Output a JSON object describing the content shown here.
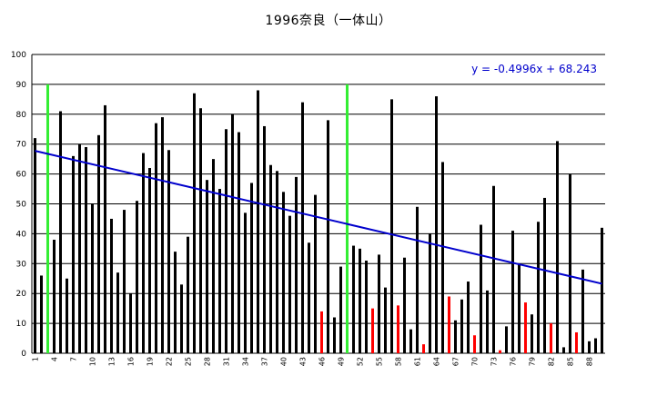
{
  "chart_data": {
    "type": "bar",
    "title": "1996奈良（一体山）",
    "xlabel": "",
    "ylabel": "",
    "ylim": [
      0,
      100
    ],
    "y_ticks": [
      0,
      10,
      20,
      30,
      40,
      50,
      60,
      70,
      80,
      90,
      100
    ],
    "x_ticks": [
      "1",
      "4",
      "7",
      "10",
      "13",
      "16",
      "19",
      "22",
      "25",
      "28",
      "31",
      "34",
      "37",
      "40",
      "43",
      "46",
      "49",
      "52",
      "55",
      "58",
      "61",
      "64",
      "67",
      "70",
      "73",
      "76",
      "79",
      "82",
      "85",
      "88"
    ],
    "grid": "horizontal",
    "legend": "none",
    "x": [
      1,
      2,
      3,
      4,
      5,
      6,
      7,
      8,
      9,
      10,
      11,
      12,
      13,
      14,
      15,
      16,
      17,
      18,
      19,
      20,
      21,
      22,
      23,
      24,
      25,
      26,
      27,
      28,
      29,
      30,
      31,
      32,
      33,
      34,
      35,
      36,
      37,
      38,
      39,
      40,
      41,
      42,
      43,
      44,
      45,
      46,
      47,
      48,
      49,
      50,
      51,
      52,
      53,
      54,
      55,
      56,
      57,
      58,
      59,
      60,
      61,
      62,
      63,
      64,
      65,
      66,
      67,
      68,
      69,
      70,
      71,
      72,
      73,
      74,
      75,
      76,
      77,
      78,
      79,
      80,
      81,
      82,
      83,
      84,
      85,
      86,
      87,
      88,
      89,
      90
    ],
    "values": [
      72,
      26,
      90,
      38,
      81,
      25,
      66,
      70,
      69,
      50,
      73,
      83,
      45,
      27,
      48,
      20,
      51,
      67,
      62,
      77,
      79,
      68,
      34,
      23,
      39,
      87,
      82,
      58,
      65,
      55,
      75,
      80,
      74,
      47,
      57,
      88,
      76,
      63,
      61,
      54,
      46,
      59,
      84,
      37,
      53,
      14,
      78,
      12,
      29,
      90,
      36,
      35,
      31,
      15,
      33,
      22,
      85,
      16,
      32,
      8,
      49,
      3,
      40,
      86,
      64,
      19,
      11,
      18,
      24,
      6,
      43,
      21,
      56,
      1,
      9,
      41,
      30,
      17,
      13,
      44,
      52,
      10,
      71,
      2,
      60,
      7,
      28,
      4,
      5,
      42
    ],
    "bar_colors": [
      "black",
      "black",
      "lime",
      "black",
      "black",
      "black",
      "black",
      "black",
      "black",
      "black",
      "black",
      "black",
      "black",
      "black",
      "black",
      "black",
      "black",
      "black",
      "black",
      "black",
      "black",
      "black",
      "black",
      "black",
      "black",
      "black",
      "black",
      "black",
      "black",
      "black",
      "black",
      "black",
      "black",
      "black",
      "black",
      "black",
      "black",
      "black",
      "black",
      "black",
      "black",
      "black",
      "black",
      "black",
      "black",
      "red",
      "black",
      "black",
      "black",
      "lime",
      "black",
      "black",
      "black",
      "red",
      "black",
      "black",
      "black",
      "red",
      "black",
      "black",
      "black",
      "red",
      "black",
      "black",
      "black",
      "red",
      "black",
      "black",
      "black",
      "red",
      "black",
      "black",
      "black",
      "red",
      "black",
      "black",
      "black",
      "red",
      "black",
      "black",
      "black",
      "red",
      "black",
      "black",
      "black",
      "red",
      "black",
      "black",
      "black",
      "black"
    ],
    "trendline": {
      "slope": -0.4996,
      "intercept": 68.243,
      "label": "y = -0.4996x + 68.243",
      "color": "#0000cc"
    }
  }
}
